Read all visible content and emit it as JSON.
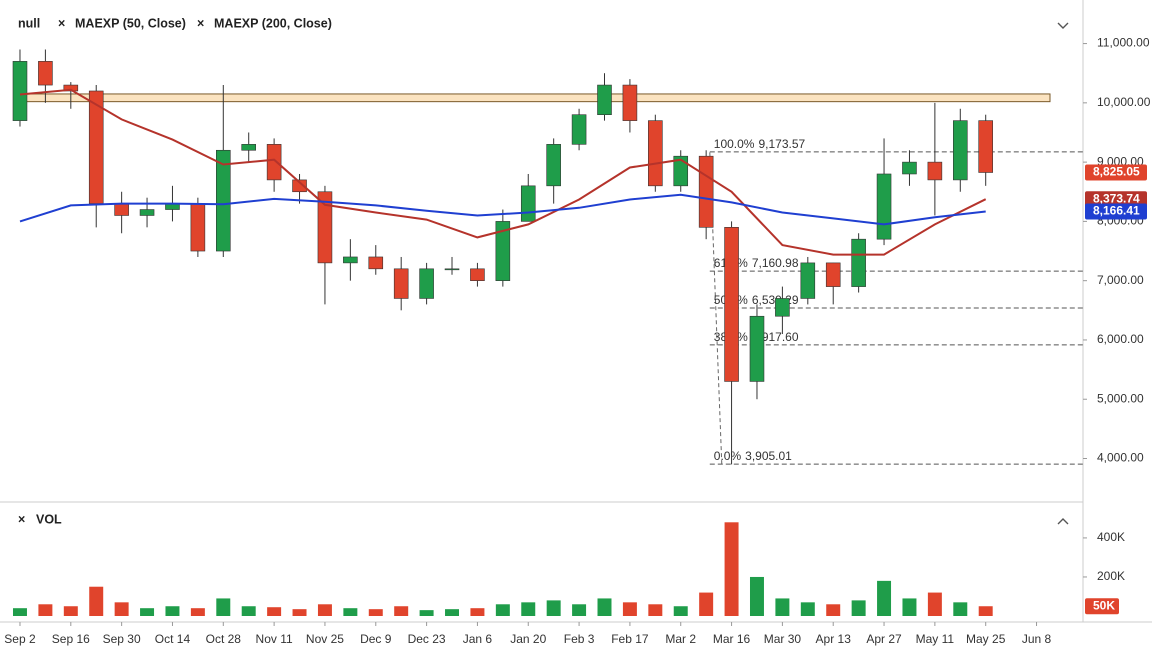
{
  "chart_data": {
    "type": "candlestick",
    "name": "null",
    "x": [
      0,
      7,
      14,
      21,
      28,
      35,
      42,
      49,
      56,
      63,
      70,
      77,
      84,
      91,
      98,
      105,
      112,
      119,
      126,
      133,
      140,
      147,
      154,
      161,
      168,
      175,
      182,
      189,
      196,
      203,
      210,
      217,
      224,
      231,
      238,
      245,
      252,
      259,
      266
    ],
    "open": [
      9700,
      10700,
      10300,
      10200,
      8300,
      8100,
      8200,
      8300,
      7500,
      9200,
      9300,
      8700,
      8500,
      7300,
      7400,
      7200,
      6700,
      7200,
      7200,
      7000,
      8000,
      8600,
      9300,
      9800,
      10300,
      9700,
      8600,
      9100,
      7900,
      5300,
      6400,
      6700,
      7300,
      6900,
      7700,
      8800,
      9000,
      8700,
      9700
    ],
    "high": [
      10900,
      10900,
      10350,
      10300,
      8500,
      8400,
      8600,
      8400,
      10300,
      9500,
      9400,
      8800,
      8600,
      7700,
      7600,
      7400,
      7300,
      7400,
      7300,
      8200,
      8800,
      9400,
      9900,
      10500,
      10400,
      9800,
      9200,
      9200,
      8000,
      6600,
      6900,
      7400,
      7300,
      7800,
      9400,
      9200,
      10000,
      9900,
      9800
    ],
    "low": [
      9600,
      10000,
      9900,
      7900,
      7800,
      7900,
      8000,
      7400,
      7400,
      9000,
      8500,
      8300,
      6600,
      7000,
      7100,
      6500,
      6600,
      7100,
      6900,
      6900,
      8000,
      8300,
      9200,
      9700,
      9500,
      8500,
      8500,
      7700,
      3900,
      5000,
      6100,
      6600,
      6600,
      6800,
      7600,
      8600,
      8100,
      8500,
      8600
    ],
    "close": [
      10700,
      10300,
      10200,
      8300,
      8100,
      8200,
      8300,
      7500,
      9200,
      9300,
      8700,
      8500,
      7300,
      7400,
      7200,
      6700,
      7200,
      7200,
      7000,
      8000,
      8600,
      9300,
      9800,
      10300,
      9700,
      8600,
      9100,
      7900,
      5300,
      6400,
      6700,
      7300,
      6900,
      7700,
      8800,
      9000,
      8700,
      9700,
      8825.05
    ],
    "last_label": "8,825.05",
    "up_color": "#1f9d4a",
    "down_color": "#e0442c",
    "xlim": [
      -3.3,
      292.8
    ],
    "xticks": [
      {
        "value": 0,
        "label": "Sep 2"
      },
      {
        "value": 14,
        "label": "Sep 16"
      },
      {
        "value": 28,
        "label": "Sep 30"
      },
      {
        "value": 42,
        "label": "Oct 14"
      },
      {
        "value": 56,
        "label": "Oct 28"
      },
      {
        "value": 70,
        "label": "Nov 11"
      },
      {
        "value": 84,
        "label": "Nov 25"
      },
      {
        "value": 98,
        "label": "Dec 9"
      },
      {
        "value": 112,
        "label": "Dec 23"
      },
      {
        "value": 126,
        "label": "Jan 6"
      },
      {
        "value": 140,
        "label": "Jan 20"
      },
      {
        "value": 154,
        "label": "Feb 3"
      },
      {
        "value": 168,
        "label": "Feb 17"
      },
      {
        "value": 182,
        "label": "Mar 2"
      },
      {
        "value": 196,
        "label": "Mar 16"
      },
      {
        "value": 210,
        "label": "Mar 30"
      },
      {
        "value": 224,
        "label": "Apr 13"
      },
      {
        "value": 238,
        "label": "Apr 27"
      },
      {
        "value": 252,
        "label": "May 11"
      },
      {
        "value": 266,
        "label": "May 25"
      },
      {
        "value": 280,
        "label": "Jun 8"
      }
    ],
    "ylim": [
      3300,
      11600
    ],
    "yticks": [
      {
        "value": 11000,
        "label": "11,000.00"
      },
      {
        "value": 10000,
        "label": "10,000.00"
      },
      {
        "value": 9000,
        "label": "9,000.00"
      },
      {
        "value": 8000,
        "label": "8,000.00"
      },
      {
        "value": 7000,
        "label": "7,000.00"
      },
      {
        "value": 6000,
        "label": "6,000.00"
      },
      {
        "value": 5000,
        "label": "5,000.00"
      },
      {
        "value": 4000,
        "label": "4,000.00"
      }
    ],
    "grid": false,
    "zone": [
      10020,
      10150
    ],
    "series": [
      {
        "name": "MAEXP (50, Close)",
        "color": "#b5332b",
        "last_label": "8,373.74",
        "x": [
          0,
          14,
          28,
          42,
          56,
          70,
          84,
          98,
          112,
          126,
          140,
          154,
          168,
          182,
          196,
          210,
          224,
          238,
          252,
          266
        ],
        "values": [
          10140,
          10220,
          9720,
          9380,
          8960,
          9040,
          8280,
          8150,
          8030,
          7730,
          7950,
          8370,
          8910,
          9040,
          8500,
          7600,
          7440,
          7440,
          7950,
          8373.74
        ]
      },
      {
        "name": "MAEXP (200, Close)",
        "color": "#1f3fd1",
        "last_label": "8,166.41",
        "x": [
          0,
          14,
          28,
          42,
          56,
          70,
          84,
          98,
          112,
          126,
          140,
          154,
          168,
          182,
          196,
          210,
          224,
          238,
          252,
          266
        ],
        "values": [
          8000,
          8270,
          8300,
          8300,
          8290,
          8380,
          8330,
          8270,
          8180,
          8100,
          8150,
          8230,
          8370,
          8450,
          8320,
          8150,
          8050,
          7950,
          8070,
          8166.41
        ]
      }
    ],
    "fib": {
      "x_from": 190,
      "levels": [
        {
          "label": "100.0%",
          "value": 9173.57,
          "value_label": "9,173.57"
        },
        {
          "label": "61.8%",
          "value": 7160.98,
          "value_label": "7,160.98"
        },
        {
          "label": "50.0%",
          "value": 6539.29,
          "value_label": "6,539.29"
        },
        {
          "label": "38.2%",
          "value": 5917.6,
          "value_label": "5,917.60"
        },
        {
          "label": "0.0%",
          "value": 3905.01,
          "value_label": "3,905.01"
        }
      ]
    },
    "volume": {
      "name": "VOL",
      "values": [
        40000,
        60000,
        50000,
        150000,
        70000,
        40000,
        50000,
        40000,
        90000,
        50000,
        45000,
        35000,
        60000,
        40000,
        35000,
        50000,
        30000,
        35000,
        40000,
        60000,
        70000,
        80000,
        60000,
        90000,
        70000,
        60000,
        50000,
        120000,
        480000,
        200000,
        90000,
        70000,
        60000,
        80000,
        180000,
        90000,
        120000,
        70000,
        50000
      ],
      "last_label": "50K",
      "ylim": [
        0,
        543000
      ],
      "yticks": [
        {
          "value": 400000,
          "label": "400K"
        },
        {
          "value": 200000,
          "label": "200K"
        }
      ]
    }
  }
}
